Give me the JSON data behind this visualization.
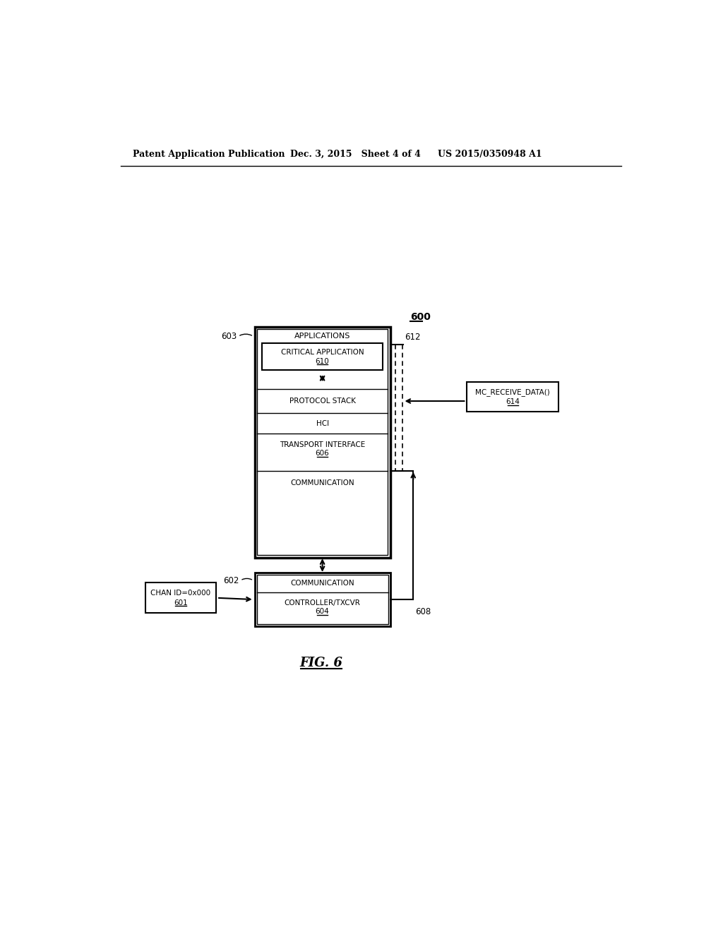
{
  "bg_color": "#ffffff",
  "header_left": "Patent Application Publication",
  "header_mid": "Dec. 3, 2015   Sheet 4 of 4",
  "header_right": "US 2015/0350948 A1",
  "fig_label": "FIG. 6",
  "label_600": "600",
  "label_603": "603",
  "label_602": "602",
  "label_608": "608",
  "label_612": "612",
  "box_applications_label": "APPLICATIONS",
  "box_critical_app_line1": "CRITICAL APPLICATION",
  "box_critical_app_line2": "610",
  "box_protocol_stack": "PROTOCOL STACK",
  "box_hci": "HCI",
  "box_transport_line1": "TRANSPORT INTERFACE",
  "box_transport_line2": "606",
  "box_communication": "COMMUNICATION",
  "box_comm_ctrl_line1": "COMMUNICATION",
  "box_ctrl_txcvr_line1": "CONTROLLER/TXCVR",
  "box_ctrl_txcvr_line2": "604",
  "box_chan_line1": "CHAN ID=0x000",
  "box_chan_line2": "601",
  "box_mc_line1": "MC_RECEIVE_DATA()",
  "box_mc_line2": "614"
}
